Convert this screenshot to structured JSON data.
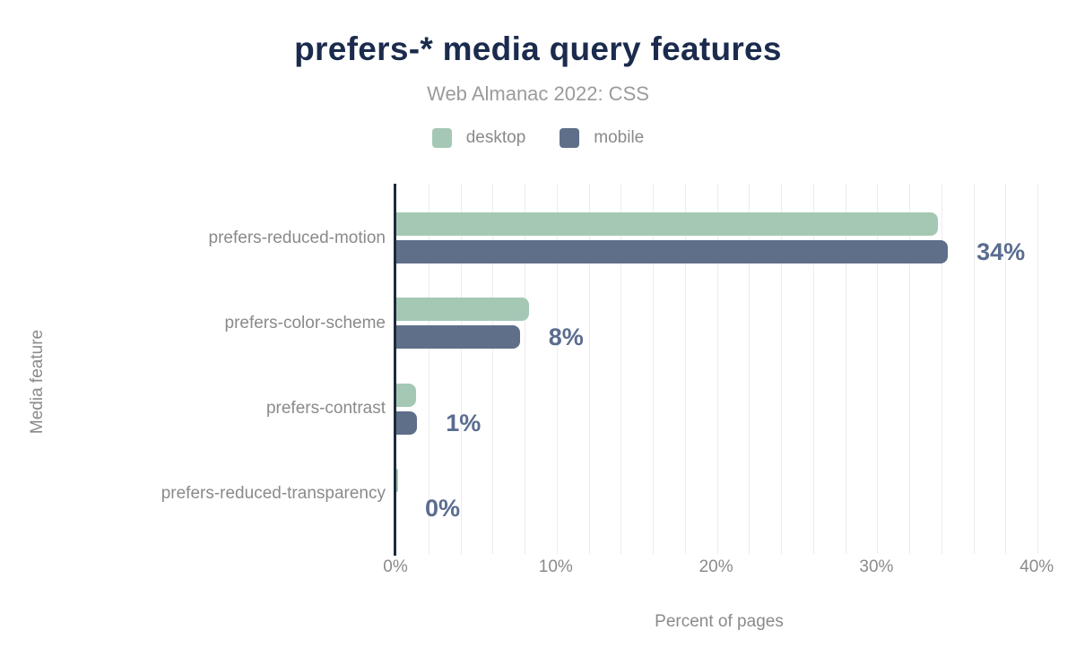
{
  "title": "prefers-* media query features",
  "subtitle": "Web Almanac 2022: CSS",
  "legend": [
    {
      "label": "desktop",
      "color": "#a5c8b5"
    },
    {
      "label": "mobile",
      "color": "#5f6f8a"
    }
  ],
  "chart_data": {
    "type": "bar",
    "orientation": "horizontal",
    "title": "prefers-* media query features",
    "subtitle": "Web Almanac 2022: CSS",
    "categories": [
      "prefers-reduced-motion",
      "prefers-color-scheme",
      "prefers-contrast",
      "prefers-reduced-transparency"
    ],
    "series": [
      {
        "name": "desktop",
        "color": "#a5c8b5",
        "values": [
          33.8,
          8.3,
          1.2,
          0.1
        ]
      },
      {
        "name": "mobile",
        "color": "#5f6f8a",
        "values": [
          34.4,
          7.7,
          1.3,
          0.0
        ]
      }
    ],
    "value_labels": [
      "34%",
      "8%",
      "1%",
      "0%"
    ],
    "xlabel": "Percent of pages",
    "ylabel": "Media feature",
    "x_ticks": [
      "0%",
      "10%",
      "20%",
      "30%",
      "40%"
    ],
    "x_tick_values": [
      0,
      10,
      20,
      30,
      40
    ],
    "xlim": [
      0,
      40.4
    ],
    "gridline_step_percent": 2,
    "grid": "vertical",
    "legend_position": "top"
  },
  "colors": {
    "background": "#ffffff",
    "title": "#1b2b4d",
    "subtitle": "#9b9b9b",
    "label_gray": "#8a8a8a",
    "value_label": "#5a6c8f",
    "axis_line": "#1c2b3d",
    "gridline": "#ececec",
    "desktop_bar": "#a5c8b5",
    "mobile_bar": "#5f6f8a"
  }
}
